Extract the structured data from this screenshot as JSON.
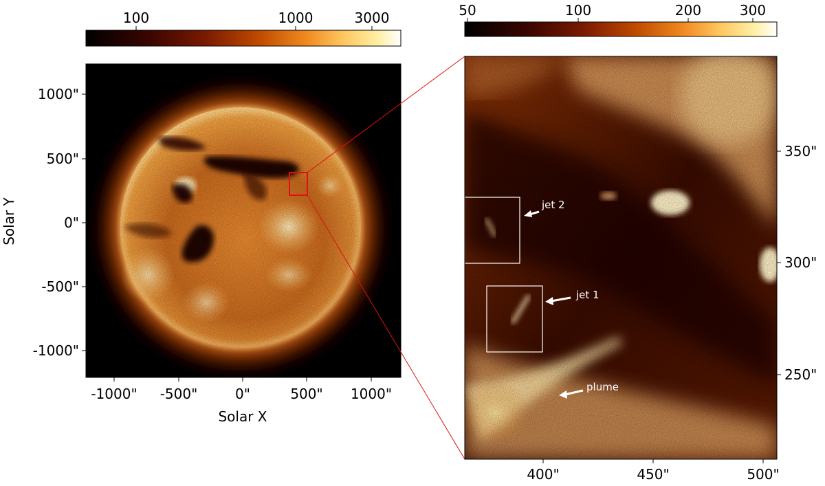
{
  "left_panel": {
    "colorbar_ticks": [
      "100",
      "1000",
      "3000"
    ],
    "x_ticks": [
      "-1000\"",
      "-500\"",
      "0\"",
      "500\"",
      "1000\""
    ],
    "y_ticks": [
      "1000\"",
      "500\"",
      "0\"",
      "-500\"",
      "-1000\""
    ],
    "xlabel": "Solar X",
    "ylabel": "Solar Y"
  },
  "right_panel": {
    "colorbar_ticks": [
      "50",
      "100",
      "200",
      "300"
    ],
    "x_ticks": [
      "400\"",
      "450\"",
      "500\""
    ],
    "y_ticks": [
      "350\"",
      "300\"",
      "250\""
    ],
    "annotations": {
      "jet2": "jet 2",
      "jet1": "jet 1",
      "plume": "plume"
    }
  },
  "colors": {
    "zoom_lines": "#e01010",
    "annotation": "#ffffff",
    "colormap": [
      "#000000",
      "#3a0500",
      "#7a1a00",
      "#c04a00",
      "#f08a20",
      "#ffc860",
      "#fff0a8",
      "#ffffff"
    ]
  }
}
